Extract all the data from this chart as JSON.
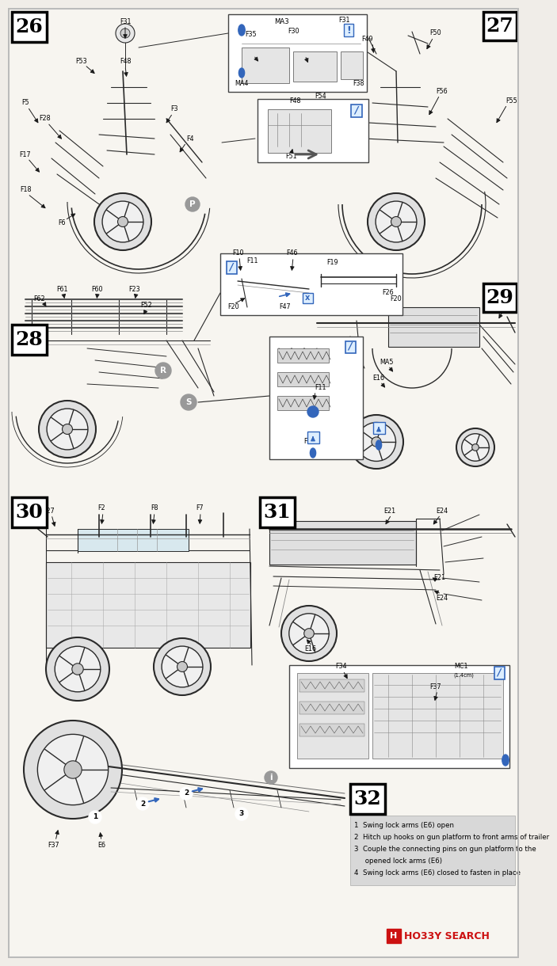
{
  "bg_color": "#f0ede8",
  "page_bg": "#f7f5f0",
  "line_color": "#2a2a2a",
  "arrow_color": "#1a1a1a",
  "blue_accent": "#3366bb",
  "blue_light": "#5588cc",
  "gray_circle_color": "#999999",
  "step_box_bg": "#ffffff",
  "inset_box_bg": "#ffffff",
  "hobby_search_red": "#cc1111",
  "hobby_search_orange": "#dd4400",
  "instruction_bg": "#d8d8d8",
  "label_fs": 5.8,
  "step_fs": 18,
  "small_fs": 5.2,
  "instr_fs": 6.2,
  "steps": [
    "26",
    "27",
    "28",
    "29",
    "30",
    "31",
    "32"
  ],
  "instructions": [
    "1  Swing lock arms (E6) open",
    "2  Hitch up hooks on gun platform to front arms of trailer",
    "3  Couple the connecting pins on gun platform to the",
    "     opened lock arms (E6)",
    "4  Swing lock arms (E6) closed to fasten in place"
  ]
}
